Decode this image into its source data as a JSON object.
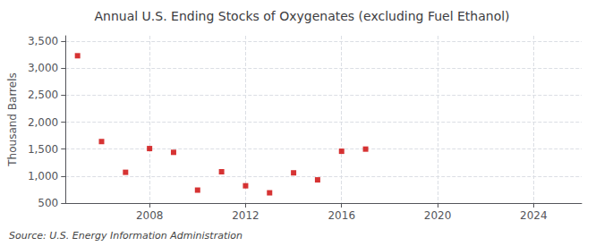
{
  "chart_data": {
    "type": "scatter",
    "title": "Annual U.S. Ending Stocks of Oxygenates (excluding Fuel Ethanol)",
    "ylabel": "Thousand Barrels",
    "annotation": "Source: U.S. Energy Information Administration",
    "x": [
      2005,
      2006,
      2007,
      2008,
      2009,
      2010,
      2011,
      2012,
      2013,
      2014,
      2015,
      2016,
      2017
    ],
    "values": [
      3230,
      1640,
      1070,
      1510,
      1440,
      740,
      1080,
      820,
      690,
      1060,
      930,
      1460,
      1500
    ],
    "color": "#cc0000",
    "marker": "square",
    "xlim": [
      2004.5,
      2026
    ],
    "xticks": [
      2008,
      2012,
      2016,
      2020,
      2024
    ],
    "ylim": [
      500,
      3600
    ],
    "yticks": [
      500,
      {
        "value": 1000,
        "label": "1,000"
      },
      {
        "value": 1500,
        "label": "1,500"
      },
      {
        "value": 2000,
        "label": "2,000"
      },
      {
        "value": 2500,
        "label": "2,500"
      },
      {
        "value": 3000,
        "label": "3,000"
      },
      {
        "value": 3500,
        "label": "3,500"
      }
    ],
    "grid": true
  }
}
